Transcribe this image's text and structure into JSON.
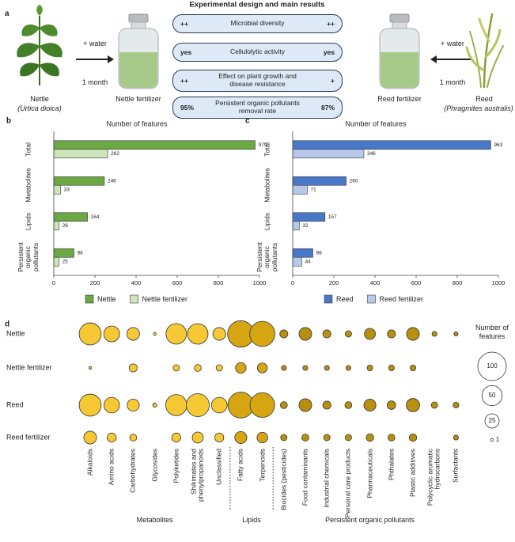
{
  "panel_a": {
    "label": "a",
    "title": "Experimental design and main results",
    "left": {
      "water": "+ water",
      "time": "1 month",
      "plant": "Nettle",
      "latin": "(Urtica dioica)",
      "fertilizer": "Nettle fertilizer"
    },
    "right": {
      "water": "+ water",
      "time": "1 month",
      "plant": "Reed",
      "latin": "(Phragmites australis)",
      "fertilizer": "Reed fertilizer"
    },
    "results": [
      {
        "left": "++",
        "text": "MIcrobial diversity",
        "right": "++"
      },
      {
        "left": "yes",
        "text": "Cellulolytic activity",
        "right": "yes"
      },
      {
        "left": "++",
        "text": "Effect on plant growth and disease resistance",
        "right": "+"
      },
      {
        "left": "95%",
        "text": "Persistent organic pollutants removal rate",
        "right": "87%"
      }
    ]
  },
  "chart_data": [
    {
      "type": "bar",
      "orientation": "horizontal",
      "label": "b",
      "title": "Number of features",
      "categories": [
        "Total",
        "Metabolites",
        "Lipids",
        "Persistent organic pollutants"
      ],
      "series": [
        {
          "name": "Nettle",
          "color": "#6ca843",
          "values": [
            979,
            246,
            164,
            98
          ]
        },
        {
          "name": "Nettle fertilizer",
          "color": "#cde5b8",
          "values": [
            262,
            33,
            26,
            25
          ]
        }
      ],
      "xlim": [
        0,
        1000
      ],
      "xticks": [
        0,
        200,
        400,
        600,
        800,
        1000
      ]
    },
    {
      "type": "bar",
      "orientation": "horizontal",
      "label": "c",
      "title": "Number of features",
      "categories": [
        "Total",
        "Metabolites",
        "Lipids",
        "Persistent organic pollutants"
      ],
      "series": [
        {
          "name": "Reed",
          "color": "#4a78c8",
          "values": [
            963,
            260,
            157,
            98
          ]
        },
        {
          "name": "Reed fertilizer",
          "color": "#b7c9ea",
          "values": [
            346,
            71,
            32,
            44
          ]
        }
      ],
      "xlim": [
        0,
        1000
      ],
      "xticks": [
        0,
        200,
        400,
        600,
        800,
        1000
      ]
    },
    {
      "type": "bubble",
      "label": "d",
      "groups": [
        {
          "name": "Metabolites",
          "color": "#f6c833",
          "categories": [
            "Alkaloids",
            "Amino acids",
            "Carbohydrates",
            "Glycosides",
            "Polyketides",
            "Shikimates and phenylpropanoids",
            "Unclassified"
          ]
        },
        {
          "name": "Lipids",
          "color": "#d6a512",
          "categories": [
            "Fatty acids",
            "Terpenoids"
          ]
        },
        {
          "name": "Persistent organic pollutants",
          "color": "#b8900f",
          "categories": [
            "Biocides (pesticides)",
            "Food contaminants",
            "Industrial chemicals",
            "Personal care products",
            "Pharmaceuticals",
            "Phthalates",
            "Plastic additives",
            "Polycyclic aromatic hydrocarbons",
            "Surfactants"
          ]
        }
      ],
      "series": [
        {
          "name": "Nettle",
          "values": [
            60,
            31,
            20,
            1,
            52,
            52,
            20,
            86,
            78,
            8,
            20,
            8,
            5,
            15,
            8,
            20,
            3,
            2
          ]
        },
        {
          "name": "Nettle fertilizer",
          "values": [
            1,
            null,
            8,
            null,
            5,
            6,
            5,
            14,
            12,
            3,
            3,
            3,
            3,
            4,
            4,
            4,
            null,
            null
          ]
        },
        {
          "name": "Reed",
          "values": [
            60,
            30,
            18,
            2,
            55,
            65,
            30,
            82,
            75,
            6,
            20,
            8,
            6,
            18,
            9,
            22,
            5,
            4
          ]
        },
        {
          "name": "Reed fertilizer",
          "values": [
            20,
            10,
            6,
            null,
            10,
            15,
            10,
            18,
            14,
            5,
            6,
            5,
            5,
            7,
            6,
            7,
            null,
            3
          ]
        }
      ],
      "size_legend": {
        "title": "Number of features",
        "values": [
          100,
          50,
          25,
          1
        ]
      }
    }
  ]
}
